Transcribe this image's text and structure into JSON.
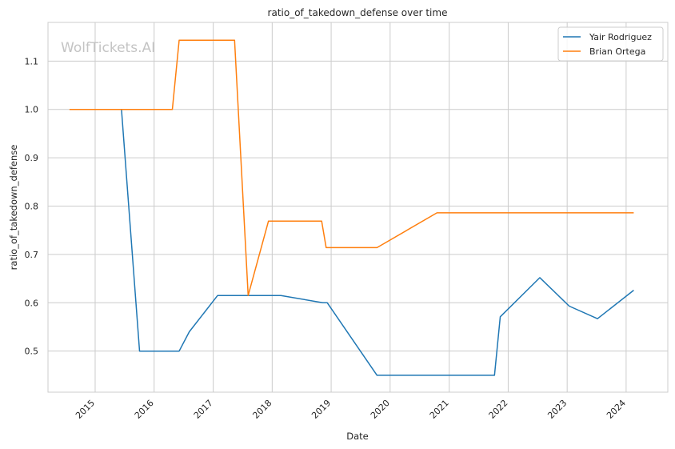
{
  "chart_data": {
    "type": "line",
    "title": "ratio_of_takedown_defense over time",
    "xlabel": "Date",
    "ylabel": "ratio_of_takedown_defense",
    "watermark": "WolfTickets.AI",
    "xlim": [
      "2014-03-15",
      "2024-09-15"
    ],
    "ylim": [
      0.415,
      1.18
    ],
    "x_ticks": [
      "2015",
      "2016",
      "2017",
      "2018",
      "2019",
      "2020",
      "2021",
      "2022",
      "2023",
      "2024"
    ],
    "y_ticks": [
      "0.5",
      "0.6",
      "0.7",
      "0.8",
      "0.9",
      "1.0",
      "1.1"
    ],
    "grid": true,
    "legend_position": "top-right",
    "series": [
      {
        "name": "Yair Rodriguez",
        "color": "#1f77b4",
        "points": [
          [
            "2014-11-08",
            1.0
          ],
          [
            "2015-06-13",
            1.0
          ],
          [
            "2015-10-03",
            0.5
          ],
          [
            "2016-06-04",
            0.5
          ],
          [
            "2016-08-06",
            0.54
          ],
          [
            "2017-01-28",
            0.615
          ],
          [
            "2018-02-24",
            0.615
          ],
          [
            "2018-11-10",
            0.6
          ],
          [
            "2018-12-08",
            0.6
          ],
          [
            "2019-10-12",
            0.45
          ],
          [
            "2021-10-08",
            0.45
          ],
          [
            "2021-11-13",
            0.571
          ],
          [
            "2022-07-16",
            0.652
          ],
          [
            "2023-01-14",
            0.593
          ],
          [
            "2023-07-08",
            0.567
          ],
          [
            "2024-02-17",
            0.626
          ]
        ]
      },
      {
        "name": "Brian Ortega",
        "color": "#ff7f0e",
        "points": [
          [
            "2014-07-26",
            1.0
          ],
          [
            "2016-04-23",
            1.0
          ],
          [
            "2016-06-04",
            1.143
          ],
          [
            "2017-05-13",
            1.143
          ],
          [
            "2017-08-05",
            0.615
          ],
          [
            "2017-12-09",
            0.769
          ],
          [
            "2018-11-03",
            0.769
          ],
          [
            "2018-12-01",
            0.714
          ],
          [
            "2019-10-12",
            0.714
          ],
          [
            "2020-10-17",
            0.786
          ],
          [
            "2024-02-17",
            0.786
          ]
        ]
      }
    ]
  }
}
